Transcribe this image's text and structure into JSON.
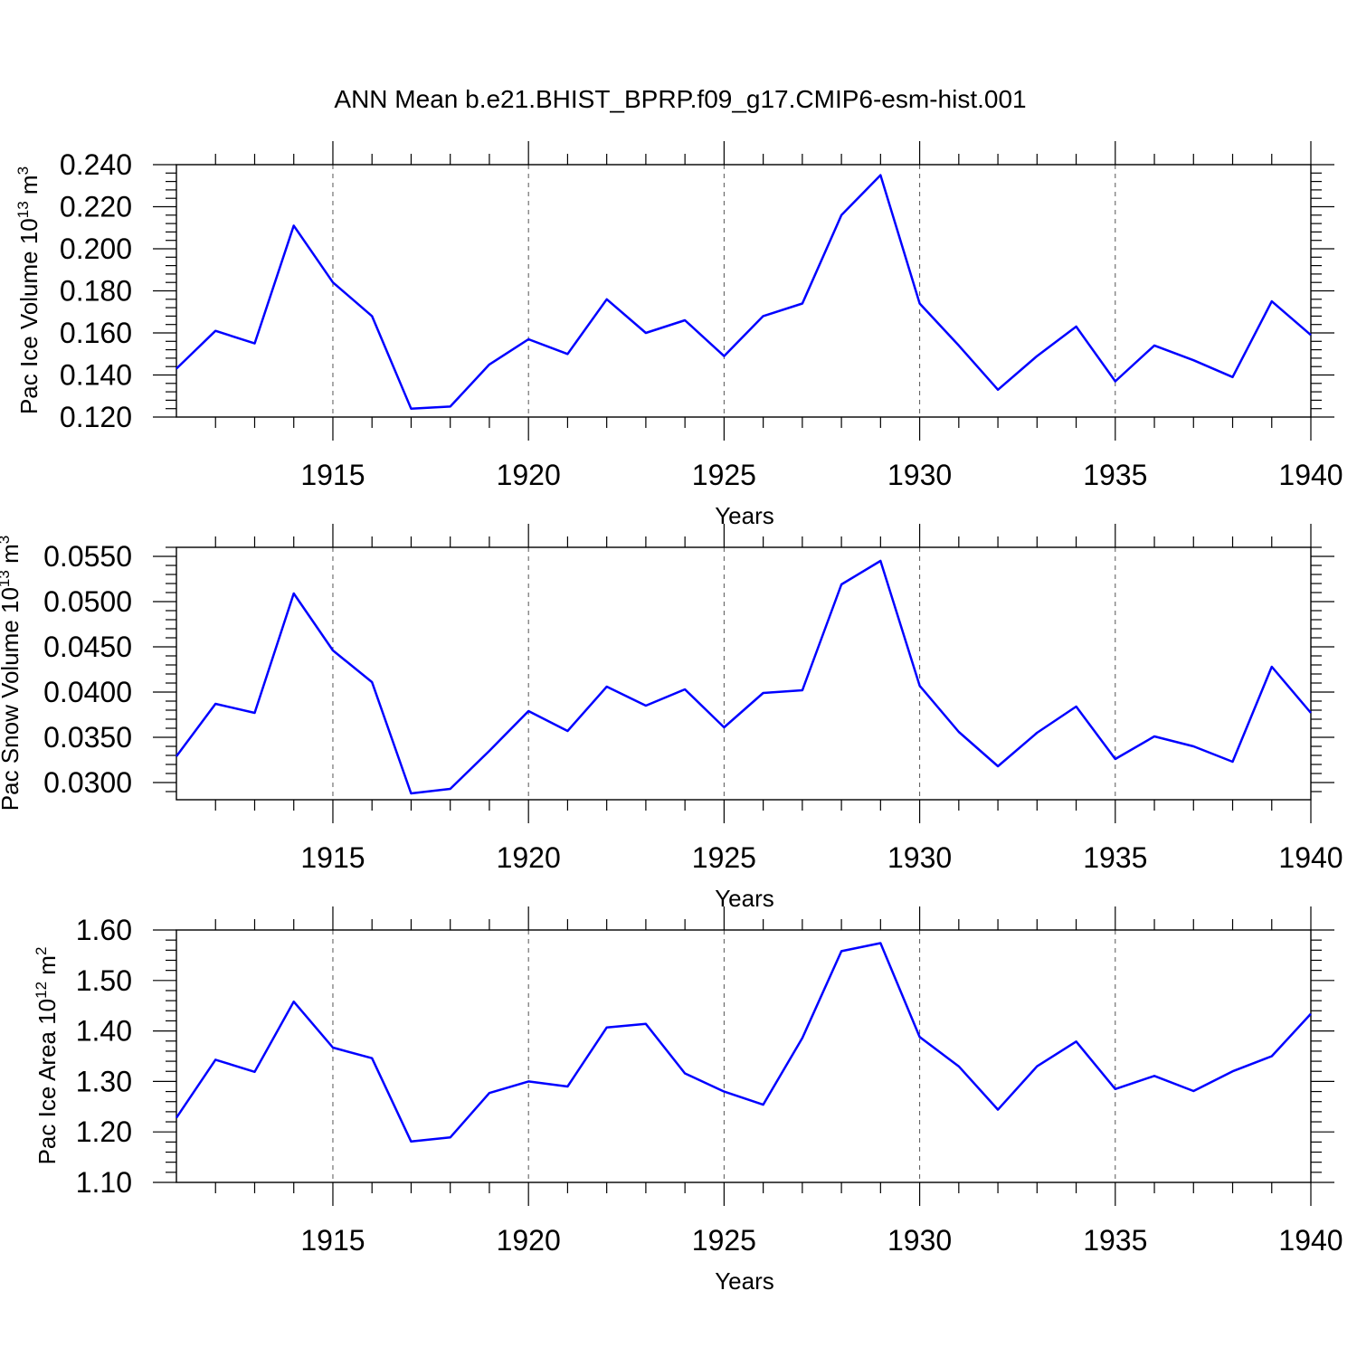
{
  "title": "ANN Mean b.e21.BHIST_BPRP.f09_g17.CMIP6-esm-hist.001",
  "colors": {
    "line": "#0000ff",
    "axes": "#000000",
    "grid": "#555555"
  },
  "chart_data": [
    {
      "type": "line",
      "ylabel_main": "Pac Ice Volume 10",
      "ylabel_exp": "13",
      "ylabel_unit": " m",
      "ylabel_unit_exp": "3",
      "xlabel": "Years",
      "xlim": [
        1911,
        1940
      ],
      "ylim": [
        0.12,
        0.24
      ],
      "ytick_values": [
        0.12,
        0.14,
        0.16,
        0.18,
        0.2,
        0.22,
        0.24
      ],
      "ytick_labels": [
        "0.120",
        "0.140",
        "0.160",
        "0.180",
        "0.200",
        "0.220",
        "0.240"
      ],
      "xticks": [
        1915,
        1920,
        1925,
        1930,
        1935,
        1940
      ],
      "xtick_labels": [
        "1915",
        "1920",
        "1925",
        "1930",
        "1935",
        "1940"
      ],
      "series": [
        {
          "name": "Pac Ice Volume",
          "x": [
            1911,
            1912,
            1913,
            1914,
            1915,
            1916,
            1917,
            1918,
            1919,
            1920,
            1921,
            1922,
            1923,
            1924,
            1925,
            1926,
            1927,
            1928,
            1929,
            1930,
            1931,
            1932,
            1933,
            1934,
            1935,
            1936,
            1937,
            1938,
            1939,
            1940
          ],
          "values": [
            0.143,
            0.161,
            0.155,
            0.211,
            0.184,
            0.168,
            0.124,
            0.125,
            0.145,
            0.157,
            0.15,
            0.176,
            0.16,
            0.166,
            0.149,
            0.168,
            0.174,
            0.216,
            0.235,
            0.174,
            0.154,
            0.133,
            0.149,
            0.163,
            0.137,
            0.154,
            0.147,
            0.139,
            0.175,
            0.159
          ]
        }
      ]
    },
    {
      "type": "line",
      "ylabel_main": "Pac Snow Volume 10",
      "ylabel_exp": "13",
      "ylabel_unit": " m",
      "ylabel_unit_exp": "3",
      "xlabel": "Years",
      "xlim": [
        1911,
        1940
      ],
      "ylim": [
        0.0281,
        0.056
      ],
      "ytick_values": [
        0.03,
        0.035,
        0.04,
        0.045,
        0.05,
        0.055
      ],
      "ytick_labels": [
        "0.0300",
        "0.0350",
        "0.0400",
        "0.0450",
        "0.0500",
        "0.0550"
      ],
      "xticks": [
        1915,
        1920,
        1925,
        1930,
        1935,
        1940
      ],
      "xtick_labels": [
        "1915",
        "1920",
        "1925",
        "1930",
        "1935",
        "1940"
      ],
      "series": [
        {
          "name": "Pac Snow Volume",
          "x": [
            1911,
            1912,
            1913,
            1914,
            1915,
            1916,
            1917,
            1918,
            1919,
            1920,
            1921,
            1922,
            1923,
            1924,
            1925,
            1926,
            1927,
            1928,
            1929,
            1930,
            1931,
            1932,
            1933,
            1934,
            1935,
            1936,
            1937,
            1938,
            1939,
            1940
          ],
          "values": [
            0.0329,
            0.0387,
            0.0377,
            0.0509,
            0.0446,
            0.0411,
            0.0288,
            0.0293,
            0.0335,
            0.0379,
            0.0357,
            0.0406,
            0.0385,
            0.0403,
            0.0361,
            0.0399,
            0.0402,
            0.0519,
            0.0545,
            0.0407,
            0.0356,
            0.0318,
            0.0355,
            0.0384,
            0.0326,
            0.0351,
            0.034,
            0.0323,
            0.0428,
            0.0377
          ]
        }
      ]
    },
    {
      "type": "line",
      "ylabel_main": "Pac Ice Area 10",
      "ylabel_exp": "12",
      "ylabel_unit": " m",
      "ylabel_unit_exp": "2",
      "xlabel": "Years",
      "xlim": [
        1911,
        1940
      ],
      "ylim": [
        1.1,
        1.6
      ],
      "ytick_values": [
        1.1,
        1.2,
        1.3,
        1.4,
        1.5,
        1.6
      ],
      "ytick_labels": [
        "1.10",
        "1.20",
        "1.30",
        "1.40",
        "1.50",
        "1.60"
      ],
      "xticks": [
        1915,
        1920,
        1925,
        1930,
        1935,
        1940
      ],
      "xtick_labels": [
        "1915",
        "1920",
        "1925",
        "1930",
        "1935",
        "1940"
      ],
      "series": [
        {
          "name": "Pac Ice Area",
          "x": [
            1911,
            1912,
            1913,
            1914,
            1915,
            1916,
            1917,
            1918,
            1919,
            1920,
            1921,
            1922,
            1923,
            1924,
            1925,
            1926,
            1927,
            1928,
            1929,
            1930,
            1931,
            1932,
            1933,
            1934,
            1935,
            1936,
            1937,
            1938,
            1939,
            1940
          ],
          "values": [
            1.228,
            1.343,
            1.319,
            1.458,
            1.367,
            1.346,
            1.181,
            1.189,
            1.277,
            1.3,
            1.29,
            1.407,
            1.414,
            1.316,
            1.28,
            1.254,
            1.386,
            1.558,
            1.574,
            1.388,
            1.33,
            1.244,
            1.33,
            1.379,
            1.285,
            1.311,
            1.281,
            1.32,
            1.35,
            1.434
          ]
        }
      ]
    }
  ]
}
